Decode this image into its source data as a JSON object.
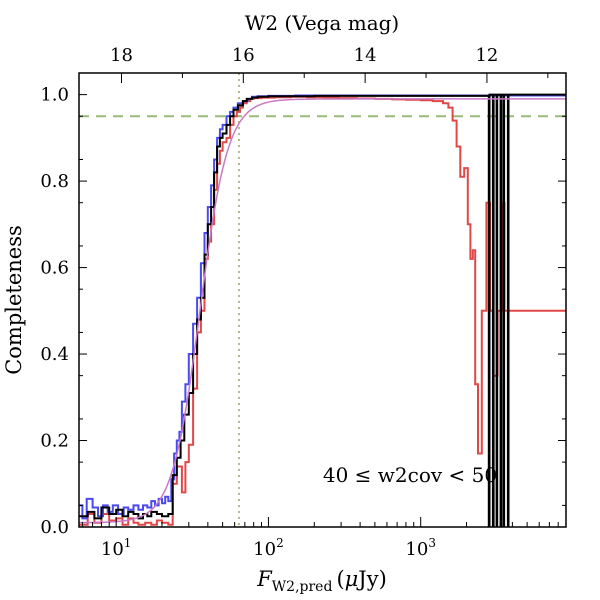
{
  "chart_data": {
    "type": "line",
    "title": "",
    "xlabel_main": "F",
    "xlabel_sub": "W2,pred",
    "xlabel_unit_pre": "(",
    "xlabel_unit_mu": "μ",
    "xlabel_unit_post": "Jy)",
    "ylabel": "Completeness",
    "top_xlabel": "W2 (Vega mag)",
    "annotation": "40 ≤ w2cov < 50",
    "x_scale": "log",
    "xlim": [
      5.7,
      9000
    ],
    "ylim": [
      0.0,
      1.05
    ],
    "x_ticks": [
      {
        "value": 10,
        "base": "10",
        "exp": "1"
      },
      {
        "value": 100,
        "base": "10",
        "exp": "2"
      },
      {
        "value": 1000,
        "base": "10",
        "exp": "3"
      }
    ],
    "y_ticks": [
      {
        "value": 0.0,
        "label": "0.0"
      },
      {
        "value": 0.2,
        "label": "0.2"
      },
      {
        "value": 0.4,
        "label": "0.4"
      },
      {
        "value": 0.6,
        "label": "0.6"
      },
      {
        "value": 0.8,
        "label": "0.8"
      },
      {
        "value": 1.0,
        "label": "1.0"
      }
    ],
    "top_ticks": [
      {
        "mag": 18,
        "label": "18"
      },
      {
        "mag": 16,
        "label": "16"
      },
      {
        "mag": 14,
        "label": "14"
      },
      {
        "mag": 12,
        "label": "12"
      }
    ],
    "reference_lines": {
      "horizontal_y": 0.95,
      "vertical_x": 64,
      "horizontal_color": "#99bb77",
      "vertical_color": "#b5b58a"
    },
    "series": [
      {
        "color": "#e04848",
        "style": "step",
        "points": [
          [
            5.7,
            0.005
          ],
          [
            6.5,
            0.03
          ],
          [
            7.2,
            0.01
          ],
          [
            8,
            0.03
          ],
          [
            9,
            0.015
          ],
          [
            10,
            0.02
          ],
          [
            11,
            0.005
          ],
          [
            12,
            0.02
          ],
          [
            13,
            0.01
          ],
          [
            14,
            0.005
          ],
          [
            15.5,
            0.01
          ],
          [
            17,
            0.005
          ],
          [
            18.5,
            0.015
          ],
          [
            20,
            0.01
          ],
          [
            22,
            0.005
          ],
          [
            23.5,
            0.1
          ],
          [
            25,
            0.14
          ],
          [
            27,
            0.08
          ],
          [
            28.5,
            0.15
          ],
          [
            30,
            0.19
          ],
          [
            32,
            0.32
          ],
          [
            34,
            0.45
          ],
          [
            36,
            0.5
          ],
          [
            38,
            0.62
          ],
          [
            40,
            0.66
          ],
          [
            42,
            0.7
          ],
          [
            44,
            0.78
          ],
          [
            46,
            0.84
          ],
          [
            48,
            0.87
          ],
          [
            50,
            0.89
          ],
          [
            53,
            0.9
          ],
          [
            56,
            0.93
          ],
          [
            59,
            0.95
          ],
          [
            62,
            0.96
          ],
          [
            65,
            0.97
          ],
          [
            68,
            0.98
          ],
          [
            72,
            0.985
          ],
          [
            76,
            0.99
          ],
          [
            80,
            0.992
          ],
          [
            90,
            0.993
          ],
          [
            110,
            0.994
          ],
          [
            140,
            0.995
          ],
          [
            180,
            0.994
          ],
          [
            230,
            0.993
          ],
          [
            290,
            0.992
          ],
          [
            380,
            0.991
          ],
          [
            500,
            0.99
          ],
          [
            650,
            0.989
          ],
          [
            800,
            0.988
          ],
          [
            1000,
            0.987
          ],
          [
            1200,
            0.985
          ],
          [
            1400,
            0.98
          ],
          [
            1520,
            0.97
          ],
          [
            1620,
            0.94
          ],
          [
            1720,
            0.88
          ],
          [
            1820,
            0.81
          ],
          [
            1930,
            0.83
          ],
          [
            2040,
            0.7
          ],
          [
            2120,
            0.62
          ],
          [
            2200,
            0.64
          ],
          [
            2280,
            0.33
          ],
          [
            2380,
            0.17
          ],
          [
            2520,
            0.5
          ],
          [
            2700,
            0.75
          ],
          [
            2850,
            0.5
          ],
          [
            3000,
            0.35
          ],
          [
            3200,
            0.5
          ],
          [
            3400,
            0.75
          ],
          [
            3550,
            0.5
          ],
          [
            3700,
            0.5
          ],
          [
            3850,
            0.5
          ]
        ]
      },
      {
        "color": "#4a4aee",
        "style": "step",
        "points": [
          [
            5.7,
            0.05
          ],
          [
            6,
            0.02
          ],
          [
            6.4,
            0.065
          ],
          [
            7,
            0.045
          ],
          [
            7.6,
            0.025
          ],
          [
            8.2,
            0.05
          ],
          [
            8.8,
            0.035
          ],
          [
            9.5,
            0.05
          ],
          [
            10.3,
            0.03
          ],
          [
            11.2,
            0.045
          ],
          [
            12,
            0.04
          ],
          [
            13,
            0.05
          ],
          [
            14,
            0.04
          ],
          [
            15,
            0.05
          ],
          [
            16,
            0.045
          ],
          [
            17,
            0.06
          ],
          [
            18,
            0.05
          ],
          [
            19,
            0.065
          ],
          [
            20,
            0.055
          ],
          [
            21,
            0.07
          ],
          [
            22,
            0.06
          ],
          [
            23,
            0.11
          ],
          [
            24,
            0.17
          ],
          [
            25,
            0.2
          ],
          [
            26,
            0.22
          ],
          [
            27,
            0.29
          ],
          [
            28.5,
            0.33
          ],
          [
            30,
            0.4
          ],
          [
            32,
            0.47
          ],
          [
            34,
            0.53
          ],
          [
            36,
            0.61
          ],
          [
            38,
            0.68
          ],
          [
            40,
            0.74
          ],
          [
            42,
            0.79
          ],
          [
            44,
            0.85
          ],
          [
            46,
            0.9
          ],
          [
            48,
            0.92
          ],
          [
            50,
            0.93
          ],
          [
            53,
            0.95
          ],
          [
            56,
            0.96
          ],
          [
            59,
            0.97
          ],
          [
            63,
            0.98
          ],
          [
            68,
            0.985
          ],
          [
            73,
            0.99
          ],
          [
            78,
            0.995
          ],
          [
            85,
            0.996
          ],
          [
            100,
            0.997
          ],
          [
            150,
            0.998
          ],
          [
            300,
            0.998
          ],
          [
            800,
            0.998
          ],
          [
            2000,
            0.998
          ],
          [
            4000,
            0.998
          ]
        ]
      },
      {
        "color": "#000000",
        "style": "step",
        "points": [
          [
            5.7,
            0.025
          ],
          [
            6.5,
            0.035
          ],
          [
            7.2,
            0.02
          ],
          [
            8,
            0.045
          ],
          [
            9,
            0.03
          ],
          [
            10,
            0.04
          ],
          [
            11,
            0.025
          ],
          [
            12,
            0.035
          ],
          [
            13,
            0.03
          ],
          [
            14,
            0.02
          ],
          [
            15,
            0.03
          ],
          [
            16,
            0.025
          ],
          [
            17,
            0.035
          ],
          [
            18.5,
            0.03
          ],
          [
            20,
            0.025
          ],
          [
            22,
            0.03
          ],
          [
            23.5,
            0.12
          ],
          [
            25,
            0.16
          ],
          [
            26.5,
            0.2
          ],
          [
            28,
            0.26
          ],
          [
            30,
            0.31
          ],
          [
            32,
            0.4
          ],
          [
            34,
            0.48
          ],
          [
            36,
            0.53
          ],
          [
            38,
            0.63
          ],
          [
            40,
            0.7
          ],
          [
            42,
            0.74
          ],
          [
            44,
            0.82
          ],
          [
            46,
            0.88
          ],
          [
            48,
            0.9
          ],
          [
            50,
            0.91
          ],
          [
            53,
            0.93
          ],
          [
            56,
            0.95
          ],
          [
            59,
            0.965
          ],
          [
            63,
            0.975
          ],
          [
            68,
            0.985
          ],
          [
            72,
            0.99
          ],
          [
            78,
            0.993
          ],
          [
            85,
            0.995
          ],
          [
            100,
            0.996
          ],
          [
            200,
            0.997
          ],
          [
            500,
            0.997
          ],
          [
            1000,
            0.997
          ],
          [
            2000,
            0.997
          ],
          [
            2750,
            0.997
          ],
          [
            2800,
            0.0
          ],
          [
            2830,
            1.0
          ],
          [
            2960,
            1.0
          ],
          [
            2980,
            0.0
          ],
          [
            3010,
            1.0
          ],
          [
            3130,
            1.0
          ],
          [
            3150,
            0.0
          ],
          [
            3180,
            1.0
          ],
          [
            3330,
            1.0
          ],
          [
            3350,
            0.0
          ],
          [
            3380,
            1.0
          ],
          [
            3480,
            1.0
          ],
          [
            3500,
            0.0
          ],
          [
            3530,
            1.0
          ],
          [
            3720,
            1.0
          ],
          [
            3740,
            0.0
          ],
          [
            3770,
            1.0
          ],
          [
            9000,
            1.0
          ]
        ]
      },
      {
        "color": "#c77ac7",
        "style": "smooth",
        "model": {
          "type": "logistic_mag",
          "lower": 0.01,
          "upper": 0.99,
          "mid_flux": 35.5,
          "width_mag": 0.23
        },
        "points": []
      }
    ]
  }
}
